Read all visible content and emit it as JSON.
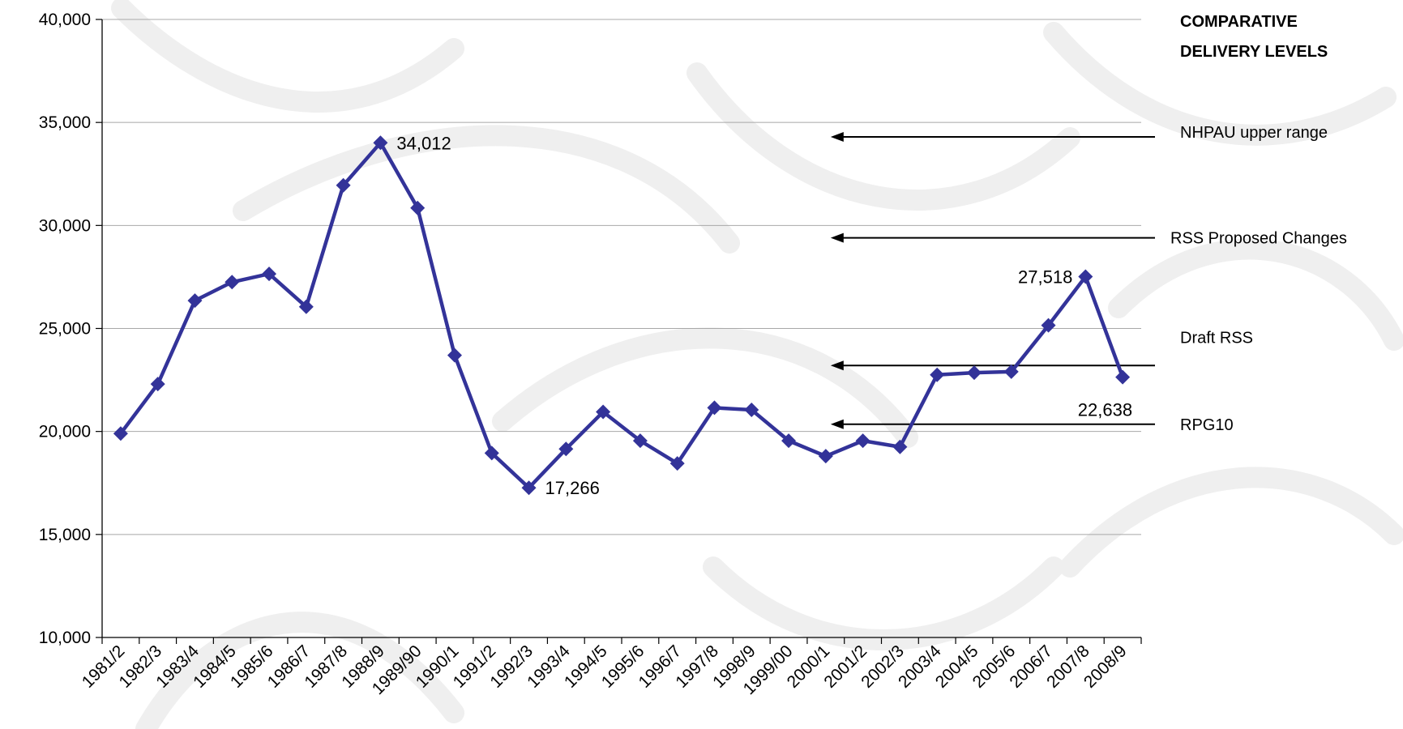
{
  "chart_data": {
    "type": "line",
    "title": "",
    "xlabel": "",
    "ylabel": "",
    "ylim": [
      10000,
      40000
    ],
    "y_ticks": [
      10000,
      15000,
      20000,
      25000,
      30000,
      35000,
      40000
    ],
    "y_tick_labels": [
      "10,000",
      "15,000",
      "20,000",
      "25,000",
      "30,000",
      "35,000",
      "40,000"
    ],
    "grid": "horizontal",
    "categories": [
      "1981/2",
      "1982/3",
      "1983/4",
      "1984/5",
      "1985/6",
      "1986/7",
      "1987/8",
      "1988/9",
      "1989/90",
      "1990/1",
      "1991/2",
      "1992/3",
      "1993/4",
      "1994/5",
      "1995/6",
      "1996/7",
      "1997/8",
      "1998/9",
      "1999/00",
      "2000/1",
      "2001/2",
      "2002/3",
      "2003/4",
      "2004/5",
      "2005/6",
      "2006/7",
      "2007/8",
      "2008/9"
    ],
    "series": [
      {
        "color": "#333399",
        "values": [
          19900,
          22300,
          26350,
          27250,
          27650,
          26050,
          31950,
          34012,
          30850,
          23700,
          18950,
          17266,
          19150,
          20950,
          19550,
          18450,
          21150,
          21050,
          19550,
          18800,
          19550,
          19250,
          22750,
          22850,
          22900,
          25150,
          27518,
          22638
        ]
      }
    ],
    "data_labels": [
      {
        "index": 7,
        "text": "34,012",
        "anchor": "right"
      },
      {
        "index": 11,
        "text": "17,266",
        "anchor": "right"
      },
      {
        "index": 26,
        "text": "27,518",
        "anchor": "left"
      },
      {
        "index": 27,
        "text": "22,638",
        "anchor": "below-left"
      }
    ],
    "side_panel": {
      "title_lines": [
        "COMPARATIVE",
        "DELIVERY LEVELS"
      ],
      "levels": [
        {
          "label": "NHPAU upper range",
          "value": 34300
        },
        {
          "label": "RSS Proposed Changes",
          "value": 29400
        },
        {
          "label": "Draft RSS",
          "value": 23200
        },
        {
          "label": "RPG10",
          "value": 20350
        }
      ]
    }
  }
}
